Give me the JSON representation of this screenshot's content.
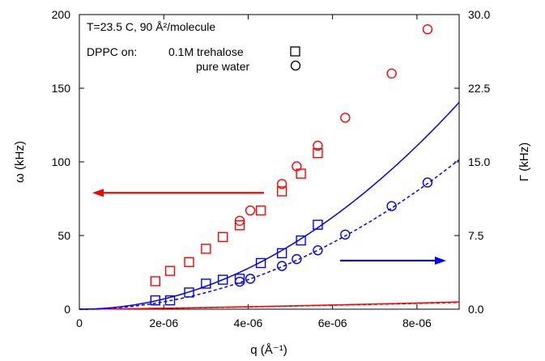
{
  "chart_data": {
    "type": "scatter",
    "annotation_line1": "T=23.5 C, 90 Å²/molecule",
    "legend_prefix": "DPPC on:",
    "legend_entries": [
      {
        "label": "0.1M trehalose",
        "marker": "square"
      },
      {
        "label": "pure water",
        "marker": "circle"
      }
    ],
    "xlabel": "q (Å⁻¹)",
    "ylabel_left": "ω (kHz)",
    "ylabel_right": "Γ (kHz)",
    "xlim": [
      0,
      9e-06
    ],
    "ylim_left": [
      0,
      200
    ],
    "ylim_right": [
      0,
      30
    ],
    "x_ticks": [
      {
        "value": 0,
        "label": "0"
      },
      {
        "value": 2e-06,
        "label": "2e-06"
      },
      {
        "value": 4e-06,
        "label": "4e-06"
      },
      {
        "value": 6e-06,
        "label": "6e-06"
      },
      {
        "value": 8e-06,
        "label": "8e-06"
      }
    ],
    "y_ticks_left": [
      {
        "value": 0,
        "label": "0"
      },
      {
        "value": 50,
        "label": "50"
      },
      {
        "value": 100,
        "label": "100"
      },
      {
        "value": 150,
        "label": "150"
      },
      {
        "value": 200,
        "label": "200"
      }
    ],
    "y_ticks_right": [
      {
        "value": 0,
        "label": "0.0"
      },
      {
        "value": 7.5,
        "label": "7.5"
      },
      {
        "value": 15,
        "label": "15.0"
      },
      {
        "value": 22.5,
        "label": "22.5"
      },
      {
        "value": 30,
        "label": "30.0"
      }
    ],
    "colors": {
      "omega": "#ff0000",
      "gamma": "#0000ff"
    },
    "series": [
      {
        "quantity": "omega",
        "axis": "left",
        "marker": "square",
        "color": "#ff0000",
        "x": [
          1.8e-06,
          2.15e-06,
          2.6e-06,
          3e-06,
          3.4e-06,
          3.8e-06,
          4.3e-06,
          4.8e-06,
          5.25e-06,
          5.65e-06
        ],
        "y": [
          19,
          26,
          32,
          41,
          49,
          57,
          67,
          80,
          92,
          106
        ]
      },
      {
        "quantity": "omega",
        "axis": "left",
        "marker": "circle",
        "color": "#ff0000",
        "x": [
          3.8e-06,
          4.05e-06,
          4.8e-06,
          5.15e-06,
          5.65e-06,
          6.3e-06,
          7.4e-06,
          8.25e-06
        ],
        "y": [
          60,
          67,
          85,
          97,
          111,
          130,
          160,
          190
        ]
      },
      {
        "quantity": "gamma",
        "axis": "right",
        "marker": "square",
        "color": "#0000ff",
        "x": [
          1.8e-06,
          2.15e-06,
          2.6e-06,
          3e-06,
          3.4e-06,
          3.8e-06,
          4.3e-06,
          4.8e-06,
          5.25e-06,
          5.65e-06
        ],
        "y": [
          0.9,
          0.9,
          1.7,
          2.6,
          3.0,
          3.1,
          4.7,
          5.7,
          7.0,
          8.6
        ]
      },
      {
        "quantity": "gamma",
        "axis": "right",
        "marker": "circle",
        "color": "#0000ff",
        "x": [
          3.8e-06,
          4.05e-06,
          4.8e-06,
          5.15e-06,
          5.65e-06,
          6.3e-06,
          7.4e-06,
          8.25e-06
        ],
        "y": [
          2.8,
          3.1,
          4.4,
          5.1,
          6.0,
          7.6,
          10.5,
          12.9
        ]
      }
    ],
    "fit_curves": [
      {
        "quantity": "omega",
        "axis": "left",
        "style": "solid",
        "color": "#ff0000",
        "equation": "y = 2.62e7 x^1.33"
      },
      {
        "quantity": "omega",
        "axis": "left",
        "style": "dashed",
        "color": "#ff0000",
        "equation": "y = 2.44e7 x^1.33"
      },
      {
        "quantity": "gamma",
        "axis": "right",
        "style": "solid",
        "color": "#0000ff",
        "equation": "y = 2.6e11 x^2"
      },
      {
        "quantity": "gamma",
        "axis": "right",
        "style": "dashed",
        "color": "#0000ff",
        "equation": "y = 1.88e11 x^2"
      }
    ],
    "arrows": [
      {
        "direction": "left",
        "color": "#ff0000",
        "points_to": "left axis"
      },
      {
        "direction": "right",
        "color": "#0000ff",
        "points_to": "right axis"
      }
    ],
    "grid": false
  }
}
